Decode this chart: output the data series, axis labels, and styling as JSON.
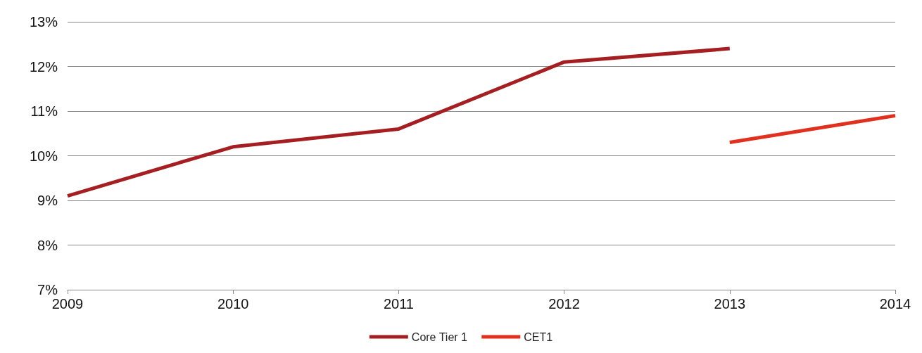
{
  "chart_data": {
    "type": "line",
    "x": [
      2009,
      2010,
      2011,
      2012,
      2013,
      2014
    ],
    "series": [
      {
        "name": "Core Tier 1",
        "color": "#a51f22",
        "values": [
          9.1,
          10.2,
          10.6,
          12.1,
          12.4,
          null
        ]
      },
      {
        "name": "CET1",
        "color": "#e2301f",
        "values": [
          null,
          null,
          null,
          null,
          10.3,
          10.9
        ]
      }
    ],
    "xlim": [
      2009,
      2014
    ],
    "xticks": [
      2009,
      2010,
      2011,
      2012,
      2013,
      2014
    ],
    "ylim": [
      7,
      13
    ],
    "yticks": [
      {
        "value": 7,
        "label": "7%"
      },
      {
        "value": 8,
        "label": "8%"
      },
      {
        "value": 9,
        "label": "9%"
      },
      {
        "value": 10,
        "label": "10%"
      },
      {
        "value": 11,
        "label": "11%"
      },
      {
        "value": 12,
        "label": "12%"
      },
      {
        "value": 13,
        "label": "13%"
      }
    ],
    "grid": "y",
    "legend": "bottom",
    "marker": "none",
    "line_style": "solid"
  }
}
